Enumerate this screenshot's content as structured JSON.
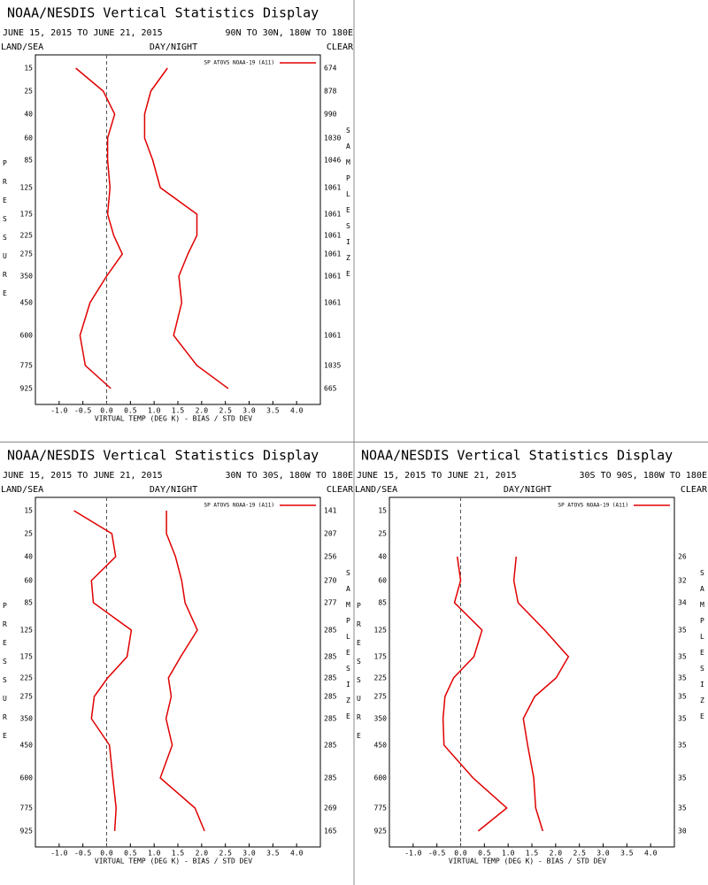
{
  "chart_data": [
    {
      "type": "line",
      "title": "NOAA/NESDIS Vertical Statistics Display",
      "subtitle": "JUNE 15, 2015 TO JUNE 21, 2015",
      "region": "90N TO 30N, 180W TO 180E",
      "left_label": "LAND/SEA",
      "center_label": "DAY/NIGHT",
      "right_label": "CLEAR",
      "xlabel": "VIRTUAL TEMP (DEG K) - BIAS / STD DEV",
      "ylabel": "PRESSURE",
      "y2label": "SAMPLE SIZE",
      "categories": [
        15,
        25,
        40,
        60,
        85,
        125,
        175,
        225,
        275,
        350,
        450,
        600,
        775,
        925
      ],
      "sample_size": [
        674,
        878,
        990,
        1030,
        1046,
        1061,
        1061,
        1061,
        1061,
        1061,
        1061,
        1061,
        1035,
        665
      ],
      "series": [
        {
          "name": "SP ATOVS NOAA-19 (A11)",
          "color": "#e00000",
          "bias": [
            -0.65,
            -0.07,
            0.17,
            0.02,
            0.02,
            0.07,
            0.02,
            0.15,
            0.33,
            0.0,
            -0.35,
            -0.56,
            -0.45,
            0.09
          ],
          "std_dev": [
            1.28,
            0.93,
            0.8,
            0.8,
            0.97,
            1.13,
            1.9,
            1.9,
            1.71,
            1.52,
            1.58,
            1.41,
            1.9,
            2.56
          ]
        }
      ],
      "xlim": [
        -1.5,
        4.5
      ],
      "xticks": [
        {
          "value": -1,
          "label": "-1.0"
        },
        -0.5,
        {
          "value": 0,
          "label": "0.0"
        },
        0.5,
        {
          "value": 1,
          "label": "1.0"
        },
        1.5,
        {
          "value": 2,
          "label": "2.0"
        },
        2.5,
        {
          "value": 3,
          "label": "3.0"
        },
        3.5,
        {
          "value": 4,
          "label": "4.0"
        }
      ]
    },
    {
      "type": "line",
      "title": "NOAA/NESDIS Vertical Statistics Display",
      "subtitle": "JUNE 15, 2015 TO JUNE 21, 2015",
      "region": "30N TO 30S, 180W TO 180E",
      "left_label": "LAND/SEA",
      "center_label": "DAY/NIGHT",
      "right_label": "CLEAR",
      "xlabel": "VIRTUAL TEMP (DEG K) - BIAS / STD DEV",
      "ylabel": "PRESSURE",
      "y2label": "SAMPLE SIZE",
      "categories": [
        15,
        25,
        40,
        60,
        85,
        125,
        175,
        225,
        275,
        350,
        450,
        600,
        775,
        925
      ],
      "sample_size": [
        141,
        207,
        256,
        270,
        277,
        285,
        285,
        285,
        285,
        285,
        285,
        285,
        269,
        165
      ],
      "series": [
        {
          "name": "SP ATOVS NOAA-19 (A11)",
          "color": "#e00000",
          "bias": [
            -0.69,
            0.11,
            0.19,
            -0.32,
            -0.28,
            0.52,
            0.43,
            0.02,
            -0.26,
            -0.32,
            0.06,
            0.13,
            0.2,
            0.17
          ],
          "std_dev": [
            1.26,
            1.26,
            1.45,
            1.58,
            1.65,
            1.91,
            1.56,
            1.3,
            1.36,
            1.25,
            1.38,
            1.13,
            1.86,
            2.06
          ]
        }
      ],
      "xlim": [
        -1.5,
        4.5
      ],
      "xticks": [
        {
          "value": -1,
          "label": "-1.0"
        },
        -0.5,
        {
          "value": 0,
          "label": "0.0"
        },
        0.5,
        {
          "value": 1,
          "label": "1.0"
        },
        1.5,
        {
          "value": 2,
          "label": "2.0"
        },
        2.5,
        {
          "value": 3,
          "label": "3.0"
        },
        3.5,
        {
          "value": 4,
          "label": "4.0"
        }
      ]
    },
    {
      "type": "line",
      "title": "NOAA/NESDIS Vertical Statistics Display",
      "subtitle": "JUNE 15, 2015 TO JUNE 21, 2015",
      "region": "30S TO 90S, 180W TO 180E",
      "left_label": "LAND/SEA",
      "center_label": "DAY/NIGHT",
      "right_label": "CLEAR",
      "xlabel": "VIRTUAL TEMP (DEG K) - BIAS / STD DEV",
      "ylabel": "PRESSURE",
      "y2label": "SAMPLE SIZE",
      "categories": [
        15,
        25,
        40,
        60,
        85,
        125,
        175,
        225,
        275,
        350,
        450,
        600,
        775,
        925
      ],
      "sample_size": [
        null,
        null,
        26,
        32,
        34,
        35,
        35,
        35,
        35,
        35,
        35,
        35,
        35,
        30
      ],
      "series": [
        {
          "name": "SP ATOVS NOAA-19 (A11)",
          "color": "#e00000",
          "bias": [
            null,
            null,
            -0.07,
            0.0,
            -0.13,
            0.45,
            0.28,
            -0.15,
            -0.33,
            -0.37,
            -0.35,
            0.26,
            0.97,
            0.37
          ],
          "std_dev": [
            null,
            null,
            1.17,
            1.12,
            1.21,
            1.77,
            2.27,
            2.01,
            1.56,
            1.32,
            1.41,
            1.54,
            1.58,
            1.73
          ]
        }
      ],
      "xlim": [
        -1.5,
        4.5
      ],
      "xticks": [
        {
          "value": -1,
          "label": "-1.0"
        },
        -0.5,
        {
          "value": 0,
          "label": "0.0"
        },
        0.5,
        {
          "value": 1,
          "label": "1.0"
        },
        1.5,
        {
          "value": 2,
          "label": "2.0"
        },
        2.5,
        {
          "value": 3,
          "label": "3.0"
        },
        3.5,
        {
          "value": 4,
          "label": "4.0"
        }
      ]
    }
  ]
}
